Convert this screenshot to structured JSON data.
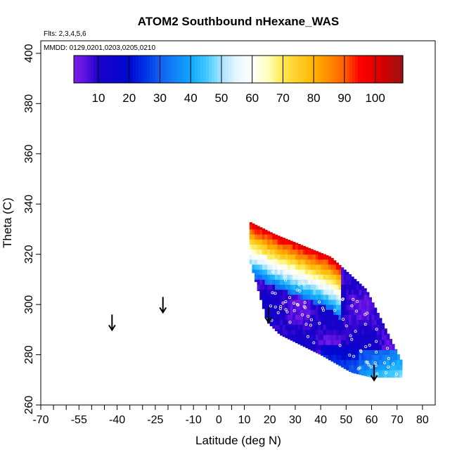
{
  "chart_data": {
    "type": "heatmap",
    "title": "ATOM2 Southbound nHexane_WAS",
    "flights_note": "Flts: 2,3,4,5,6",
    "dates_note": "MMDD: 0129,0201,0203,0205,0210",
    "xlabel": "Latitude (deg N)",
    "ylabel": "Theta (C)",
    "xlim": [
      -70,
      85
    ],
    "ylim": [
      260,
      405
    ],
    "x_ticks": [
      -70,
      -55,
      -40,
      -25,
      -10,
      0,
      10,
      20,
      30,
      40,
      50,
      60,
      70,
      80
    ],
    "x_ticks_minor": [
      -65,
      -60,
      -50,
      -45,
      -35,
      -30,
      -20,
      -15,
      -5,
      5
    ],
    "y_ticks": [
      260,
      280,
      300,
      320,
      340,
      360,
      380,
      400
    ],
    "colorbar": {
      "range": [
        2,
        109
      ],
      "tick_values": [
        10,
        20,
        30,
        40,
        50,
        60,
        70,
        80,
        90,
        100
      ],
      "divider_values": [
        10,
        20,
        30,
        40,
        50,
        60,
        70,
        80,
        90,
        100
      ],
      "stops": [
        {
          "value": 2,
          "color": "#7a1ee8"
        },
        {
          "value": 6,
          "color": "#5a10e0"
        },
        {
          "value": 10,
          "color": "#1a00c8"
        },
        {
          "value": 20,
          "color": "#0008d0"
        },
        {
          "value": 25,
          "color": "#0030e8"
        },
        {
          "value": 30,
          "color": "#1060f0"
        },
        {
          "value": 40,
          "color": "#10a8ff"
        },
        {
          "value": 45,
          "color": "#40c8ff"
        },
        {
          "value": 50,
          "color": "#a8e4ff"
        },
        {
          "value": 55,
          "color": "#e8f6ff"
        },
        {
          "value": 60,
          "color": "#ffffff"
        },
        {
          "value": 65,
          "color": "#ffffc0"
        },
        {
          "value": 70,
          "color": "#ffe850"
        },
        {
          "value": 80,
          "color": "#ffb400"
        },
        {
          "value": 90,
          "color": "#ff6000"
        },
        {
          "value": 95,
          "color": "#ff0000"
        },
        {
          "value": 102,
          "color": "#d80000"
        },
        {
          "value": 109,
          "color": "#9a1010"
        }
      ]
    },
    "profile_arrows": [
      {
        "lat": -42,
        "theta": 296
      },
      {
        "lat": -22,
        "theta": 303
      },
      {
        "lat": 19.5,
        "theta": 299
      },
      {
        "lat": 61,
        "theta": 276
      }
    ]
  }
}
